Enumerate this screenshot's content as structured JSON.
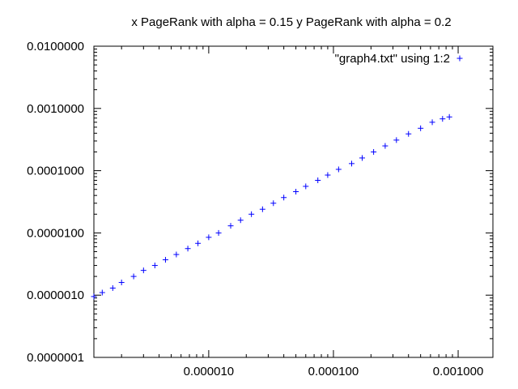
{
  "chart_data": {
    "type": "scatter",
    "title": "x PageRank with alpha = 0.15 y PageRank with alpha = 0.2",
    "xlabel": "",
    "ylabel": "",
    "xscale": "log",
    "yscale": "log",
    "xlim": [
      1.2e-06,
      0.0019
    ],
    "ylim": [
      1e-07,
      0.01
    ],
    "grid": false,
    "legend_position": "top-right",
    "x_ticks": [
      {
        "value": 1e-05,
        "label": "0.000010"
      },
      {
        "value": 0.0001,
        "label": "0.000100"
      },
      {
        "value": 0.001,
        "label": "0.001000"
      }
    ],
    "y_ticks": [
      {
        "value": 1e-07,
        "label": "0.0000001"
      },
      {
        "value": 1e-06,
        "label": "0.0000010"
      },
      {
        "value": 1e-05,
        "label": "0.0000100"
      },
      {
        "value": 0.0001,
        "label": "0.0001000"
      },
      {
        "value": 0.001,
        "label": "0.0010000"
      },
      {
        "value": 0.01,
        "label": "0.0100000"
      }
    ],
    "series": [
      {
        "name": "\"graph4.txt\" using 1:2",
        "color": "#0000ff",
        "marker": "plus",
        "x": [
          1.2e-06,
          1.4e-06,
          1.7e-06,
          2e-06,
          2.5e-06,
          3e-06,
          3.7e-06,
          4.5e-06,
          5.5e-06,
          6.8e-06,
          8.2e-06,
          1e-05,
          1.2e-05,
          1.5e-05,
          1.8e-05,
          2.2e-05,
          2.7e-05,
          3.3e-05,
          4e-05,
          5e-05,
          6e-05,
          7.5e-05,
          9e-05,
          0.00011,
          0.00014,
          0.00017,
          0.00021,
          0.00026,
          0.00032,
          0.0004,
          0.0005,
          0.00062,
          0.00075,
          0.00085
        ],
        "y": [
          9.5e-07,
          1.1e-06,
          1.3e-06,
          1.6e-06,
          2e-06,
          2.5e-06,
          3e-06,
          3.7e-06,
          4.5e-06,
          5.6e-06,
          6.8e-06,
          8.5e-06,
          1e-05,
          1.3e-05,
          1.6e-05,
          2e-05,
          2.4e-05,
          3e-05,
          3.7e-05,
          4.6e-05,
          5.6e-05,
          7e-05,
          8.5e-05,
          0.000105,
          0.00013,
          0.00016,
          0.0002,
          0.00025,
          0.00031,
          0.00039,
          0.00048,
          0.0006,
          0.00068,
          0.00073
        ]
      }
    ]
  }
}
